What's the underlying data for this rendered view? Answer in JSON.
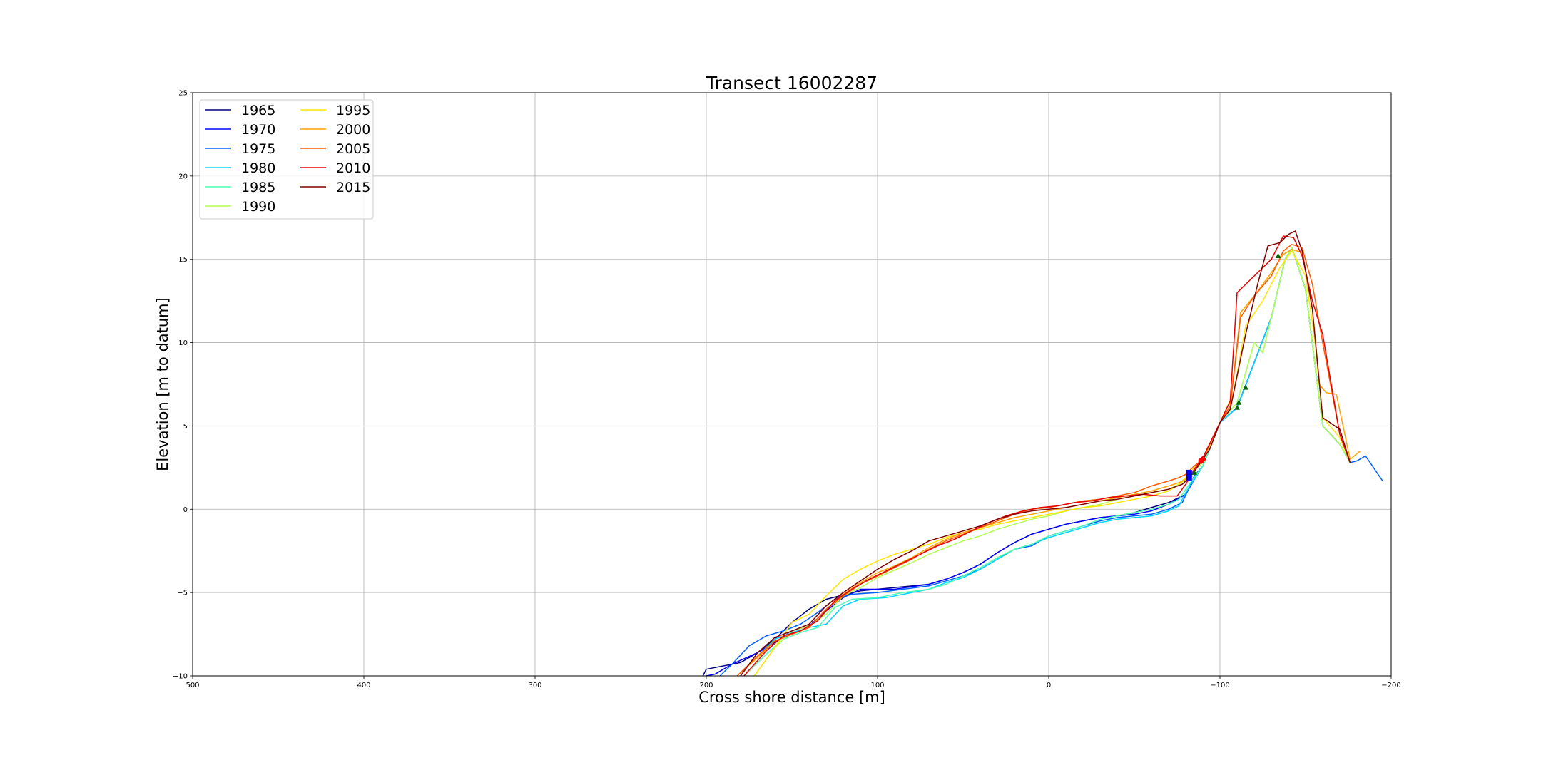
{
  "chart_data": {
    "type": "line",
    "title": "Transect 16002287",
    "xlabel": "Cross shore distance [m]",
    "ylabel": "Elevation [m to datum]",
    "xlim": [
      500,
      -200
    ],
    "ylim": [
      -10,
      25
    ],
    "x_reversed": true,
    "x_ticks": [
      500,
      400,
      300,
      200,
      100,
      0,
      -100,
      -200
    ],
    "x_tick_labels": [
      "500",
      "400",
      "300",
      "200",
      "100",
      "0",
      "−100",
      "−200"
    ],
    "y_ticks": [
      -10,
      -5,
      0,
      5,
      10,
      15,
      20,
      25
    ],
    "y_tick_labels": [
      "−10",
      "−5",
      "0",
      "5",
      "10",
      "15",
      "20",
      "25"
    ],
    "grid": true,
    "legend_position": "top-left",
    "legend_columns": 2,
    "series": [
      {
        "name": "1965",
        "color": "#00007f",
        "x": [
          202,
          200,
          180,
          170,
          160,
          150,
          140,
          130,
          110,
          90,
          70,
          60,
          50,
          40,
          30,
          20,
          10,
          0,
          -10,
          -20,
          -30,
          -40,
          -50,
          -60,
          -70,
          -80,
          -85,
          -90,
          -100,
          -110,
          -120,
          -130,
          -138,
          -142,
          -150,
          -160,
          -170,
          -176
        ],
        "y": [
          -10,
          -9.6,
          -9.2,
          -8.6,
          -7.8,
          -6.8,
          -6.0,
          -5.4,
          -4.9,
          -4.7,
          -4.5,
          -4.2,
          -3.8,
          -3.3,
          -2.6,
          -2.0,
          -1.5,
          -1.2,
          -0.9,
          -0.7,
          -0.5,
          -0.4,
          -0.2,
          0.1,
          0.4,
          0.9,
          1.8,
          2.6,
          5.2,
          6.1,
          8.8,
          11.5,
          15.0,
          15.7,
          13.2,
          5.0,
          3.9,
          2.8
        ]
      },
      {
        "name": "1970",
        "color": "#0000ff",
        "x": [
          200,
          195,
          185,
          170,
          160,
          150,
          140,
          130,
          120,
          110,
          100,
          90,
          70,
          60,
          50,
          40,
          30,
          20,
          10,
          0,
          -10,
          -20,
          -30,
          -40,
          -50,
          -60,
          -70,
          -80,
          -85,
          -90,
          -100,
          -110,
          -120,
          -130,
          -138,
          -142,
          -150,
          -160,
          -170,
          -176
        ],
        "y": [
          -10,
          -9.9,
          -9.3,
          -8.6,
          -8.0,
          -7.3,
          -7.0,
          -6.1,
          -5.3,
          -4.8,
          -4.8,
          -4.8,
          -4.5,
          -4.2,
          -3.8,
          -3.3,
          -2.6,
          -2.0,
          -1.5,
          -1.2,
          -0.9,
          -0.7,
          -0.5,
          -0.4,
          -0.3,
          -0.1,
          0.3,
          0.9,
          1.8,
          2.6,
          5.2,
          6.1,
          8.8,
          11.5,
          15.0,
          15.7,
          13.2,
          5.0,
          3.9,
          2.8
        ]
      },
      {
        "name": "1975",
        "color": "#0060ff",
        "x": [
          192,
          185,
          175,
          165,
          155,
          145,
          135,
          125,
          115,
          100,
          85,
          70,
          60,
          50,
          40,
          30,
          20,
          10,
          0,
          -10,
          -20,
          -30,
          -40,
          -50,
          -60,
          -70,
          -78,
          -82,
          -85,
          -90,
          -100,
          -110,
          -120,
          -130,
          -138,
          -142,
          -150,
          -160,
          -170,
          -176,
          -180,
          -185,
          -195
        ],
        "y": [
          -10,
          -9.3,
          -8.2,
          -7.6,
          -7.3,
          -6.9,
          -6.2,
          -5.4,
          -5.1,
          -5.0,
          -4.8,
          -4.6,
          -4.3,
          -4.0,
          -3.6,
          -3.0,
          -2.4,
          -2.2,
          -1.6,
          -1.3,
          -1.0,
          -0.7,
          -0.5,
          -0.4,
          -0.3,
          0.0,
          0.4,
          1.3,
          2.0,
          2.6,
          5.2,
          6.1,
          8.8,
          11.5,
          15.0,
          15.7,
          13.2,
          5.0,
          3.9,
          2.8,
          2.9,
          3.2,
          1.7
        ]
      },
      {
        "name": "1980",
        "color": "#00d4ff",
        "x": [
          182,
          170,
          160,
          150,
          140,
          130,
          120,
          110,
          95,
          80,
          70,
          60,
          50,
          40,
          30,
          20,
          10,
          0,
          -10,
          -20,
          -30,
          -40,
          -50,
          -60,
          -70,
          -76,
          -80,
          -85,
          -90,
          -100,
          -110,
          -120,
          -130,
          -138,
          -142,
          -150,
          -160,
          -170,
          -176
        ],
        "y": [
          -10,
          -8.8,
          -7.8,
          -7.4,
          -7.1,
          -6.9,
          -5.8,
          -5.4,
          -5.3,
          -5.0,
          -4.8,
          -4.4,
          -4.1,
          -3.6,
          -3.0,
          -2.4,
          -2.1,
          -1.7,
          -1.4,
          -1.1,
          -0.8,
          -0.6,
          -0.5,
          -0.4,
          -0.1,
          0.2,
          1.0,
          1.8,
          2.6,
          5.2,
          6.1,
          8.8,
          11.5,
          15.0,
          15.7,
          13.2,
          5.0,
          3.9,
          2.8
        ]
      },
      {
        "name": "1985",
        "color": "#4dffb2",
        "x": [
          178,
          165,
          155,
          145,
          135,
          125,
          115,
          100,
          85,
          70,
          60,
          50,
          40,
          30,
          20,
          10,
          0,
          -10,
          -20,
          -30,
          -40,
          -50,
          -60,
          -70,
          -76,
          -80,
          -85,
          -90,
          -100,
          -110,
          -120,
          -125,
          -130,
          -138,
          -142,
          -150,
          -160,
          -170,
          -176
        ],
        "y": [
          -10,
          -8.7,
          -7.8,
          -7.4,
          -7.1,
          -5.9,
          -5.4,
          -5.3,
          -5.0,
          -4.8,
          -4.5,
          -4.0,
          -3.5,
          -2.9,
          -2.4,
          -2.1,
          -1.6,
          -1.3,
          -1.0,
          -0.6,
          -0.4,
          -0.2,
          0.0,
          0.3,
          0.6,
          1.2,
          1.9,
          2.6,
          5.2,
          6.4,
          10.0,
          9.4,
          11.5,
          15.0,
          15.7,
          13.2,
          5.0,
          3.9,
          2.8
        ]
      },
      {
        "name": "1990",
        "color": "#b2ff4d",
        "x": [
          172,
          160,
          150,
          140,
          130,
          120,
          110,
          100,
          80,
          70,
          60,
          50,
          40,
          30,
          20,
          10,
          0,
          -10,
          -20,
          -30,
          -40,
          -50,
          -60,
          -70,
          -76,
          -80,
          -85,
          -90,
          -100,
          -110,
          -120,
          -125,
          -130,
          -138,
          -142,
          -150,
          -160,
          -170,
          -176
        ],
        "y": [
          -10,
          -8.3,
          -7.3,
          -7.0,
          -6.3,
          -5.2,
          -4.7,
          -4.1,
          -3.2,
          -2.7,
          -2.3,
          -1.9,
          -1.6,
          -1.2,
          -0.9,
          -0.6,
          -0.4,
          -0.1,
          0.1,
          0.3,
          0.6,
          0.8,
          1.0,
          1.2,
          1.5,
          1.8,
          2.3,
          2.8,
          5.2,
          6.4,
          10.0,
          9.4,
          11.5,
          15.0,
          15.7,
          13.2,
          5.0,
          3.9,
          2.8
        ]
      },
      {
        "name": "1995",
        "color": "#ffe600",
        "x": [
          172,
          160,
          150,
          140,
          130,
          120,
          110,
          100,
          90,
          80,
          70,
          60,
          50,
          40,
          30,
          20,
          10,
          0,
          -10,
          -20,
          -30,
          -40,
          -50,
          -60,
          -70,
          -76,
          -80,
          -85,
          -90,
          -100,
          -108,
          -115,
          -125,
          -135,
          -142,
          -150,
          -155,
          -160,
          -170,
          -176
        ],
        "y": [
          -10,
          -8.3,
          -6.8,
          -6.3,
          -5.2,
          -4.2,
          -3.6,
          -3.1,
          -2.7,
          -2.4,
          -2.1,
          -1.7,
          -1.4,
          -1.2,
          -0.9,
          -0.7,
          -0.5,
          -0.3,
          -0.1,
          0.1,
          0.2,
          0.4,
          0.6,
          0.8,
          1.1,
          1.5,
          1.9,
          2.5,
          3.0,
          5.2,
          7.0,
          11.0,
          12.5,
          14.5,
          15.5,
          14.0,
          10.5,
          5.5,
          4.3,
          2.8
        ]
      },
      {
        "name": "2000",
        "color": "#ffa200",
        "x": [
          182,
          170,
          160,
          150,
          140,
          130,
          120,
          110,
          100,
          90,
          80,
          70,
          60,
          50,
          40,
          30,
          20,
          10,
          0,
          -10,
          -20,
          -30,
          -40,
          -50,
          -60,
          -70,
          -76,
          -80,
          -85,
          -90,
          -100,
          -106,
          -112,
          -120,
          -130,
          -137,
          -142,
          -148,
          -154,
          -158,
          -162,
          -168,
          -176,
          -182
        ],
        "y": [
          -10,
          -8.9,
          -7.9,
          -7.5,
          -7.1,
          -6.0,
          -5.1,
          -4.4,
          -3.8,
          -3.4,
          -2.9,
          -2.3,
          -1.8,
          -1.4,
          -1.1,
          -0.8,
          -0.5,
          -0.3,
          -0.1,
          0.1,
          0.3,
          0.5,
          0.7,
          0.9,
          1.1,
          1.4,
          1.6,
          1.8,
          2.4,
          3.0,
          5.2,
          6.2,
          11.8,
          12.8,
          14.2,
          15.3,
          15.6,
          15.4,
          12.0,
          7.5,
          7.0,
          6.9,
          3.0,
          3.5
        ]
      },
      {
        "name": "2005",
        "color": "#ff5a00",
        "x": [
          182,
          170,
          160,
          150,
          140,
          130,
          120,
          110,
          100,
          90,
          80,
          70,
          60,
          50,
          40,
          30,
          20,
          10,
          0,
          -10,
          -20,
          -30,
          -40,
          -50,
          -60,
          -70,
          -76,
          -80,
          -85,
          -90,
          -100,
          -106,
          -112,
          -120,
          -130,
          -137,
          -142,
          -148,
          -154,
          -160,
          -170,
          -176
        ],
        "y": [
          -10,
          -8.8,
          -7.9,
          -7.5,
          -7.1,
          -6.0,
          -5.2,
          -4.5,
          -4.0,
          -3.5,
          -3.0,
          -2.4,
          -1.9,
          -1.5,
          -1.1,
          -0.7,
          -0.3,
          0.0,
          0.1,
          0.3,
          0.5,
          0.6,
          0.8,
          1.0,
          1.4,
          1.7,
          1.9,
          2.1,
          2.6,
          3.0,
          5.2,
          6.2,
          11.5,
          12.8,
          14.0,
          15.5,
          15.9,
          15.7,
          13.5,
          10.0,
          4.5,
          2.8
        ]
      },
      {
        "name": "2010",
        "color": "#e80000",
        "x": [
          178,
          165,
          155,
          145,
          135,
          125,
          115,
          105,
          95,
          85,
          75,
          65,
          55,
          45,
          35,
          25,
          15,
          5,
          -5,
          -15,
          -25,
          -35,
          -45,
          -55,
          -65,
          -75,
          -80,
          -85,
          -90,
          -100,
          -106,
          -110,
          -120,
          -130,
          -137,
          -143,
          -148,
          -154,
          -160,
          -170,
          -176
        ],
        "y": [
          -10,
          -8.5,
          -7.6,
          -7.3,
          -6.7,
          -5.5,
          -4.8,
          -4.2,
          -3.7,
          -3.2,
          -2.7,
          -2.2,
          -1.8,
          -1.3,
          -0.8,
          -0.4,
          -0.1,
          0.1,
          0.2,
          0.4,
          0.5,
          0.7,
          0.8,
          0.9,
          0.8,
          0.8,
          1.5,
          2.4,
          3.1,
          5.2,
          6.5,
          13.0,
          14.0,
          15.0,
          16.4,
          16.3,
          15.2,
          12.5,
          10.5,
          4.5,
          2.8
        ]
      },
      {
        "name": "2015",
        "color": "#7f0000",
        "x": [
          180,
          170,
          160,
          150,
          140,
          130,
          120,
          110,
          100,
          90,
          80,
          70,
          60,
          50,
          40,
          30,
          20,
          10,
          0,
          -10,
          -20,
          -30,
          -40,
          -50,
          -60,
          -70,
          -78,
          -83,
          -88,
          -94,
          -100,
          -106,
          -110,
          -115,
          -122,
          -128,
          -135,
          -140,
          -144,
          -148,
          -154,
          -160,
          -170,
          -176
        ],
        "y": [
          -10,
          -8.6,
          -7.7,
          -7.3,
          -6.9,
          -5.8,
          -5.0,
          -4.3,
          -3.6,
          -3.0,
          -2.5,
          -1.9,
          -1.6,
          -1.3,
          -1.0,
          -0.6,
          -0.3,
          -0.1,
          0.0,
          0.1,
          0.3,
          0.5,
          0.6,
          0.8,
          1.0,
          1.2,
          1.5,
          2.0,
          2.7,
          3.6,
          5.2,
          6.0,
          8.0,
          10.5,
          13.5,
          15.8,
          16.0,
          16.5,
          16.7,
          15.5,
          12.0,
          5.5,
          4.8,
          2.8
        ]
      }
    ],
    "markers": [
      {
        "shape": "square",
        "color": "#0000ff",
        "x": -82,
        "y": 1.9
      },
      {
        "shape": "square",
        "color": "#0000ff",
        "x": -82,
        "y": 2.2
      },
      {
        "shape": "diamond",
        "color": "#ff0000",
        "x": -90,
        "y": 3.0
      },
      {
        "shape": "circle",
        "color": "#ff0000",
        "x": -89,
        "y": 2.9
      },
      {
        "shape": "triangle",
        "color": "#006400",
        "x": -85,
        "y": 2.2
      },
      {
        "shape": "triangle",
        "color": "#006400",
        "x": -110,
        "y": 6.1
      },
      {
        "shape": "triangle",
        "color": "#006400",
        "x": -111,
        "y": 6.4
      },
      {
        "shape": "triangle",
        "color": "#006400",
        "x": -115,
        "y": 7.3
      },
      {
        "shape": "triangle",
        "color": "#006400",
        "x": -134,
        "y": 15.2
      }
    ]
  }
}
